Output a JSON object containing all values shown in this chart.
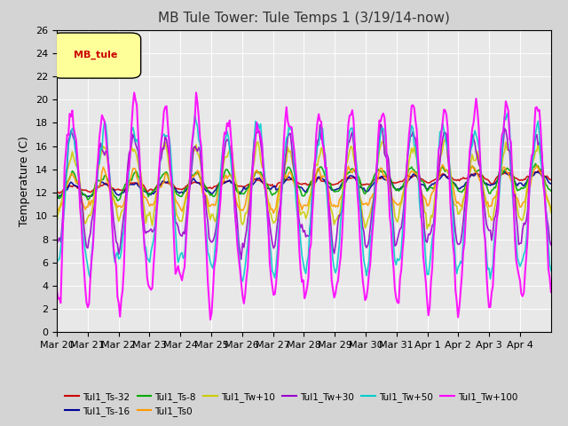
{
  "title": "MB Tule Tower: Tule Temps 1 (3/19/14-now)",
  "ylabel": "Temperature (C)",
  "xlabel": "",
  "ylim": [
    0,
    26
  ],
  "yticks": [
    0,
    2,
    4,
    6,
    8,
    10,
    12,
    14,
    16,
    18,
    20,
    22,
    24,
    26
  ],
  "x_labels": [
    "Mar 20",
    "Mar 21",
    "Mar 22",
    "Mar 23",
    "Mar 24",
    "Mar 25",
    "Mar 26",
    "Mar 27",
    "Mar 28",
    "Mar 29",
    "Mar 30",
    "Mar 31",
    "Apr 1",
    "Apr 2",
    "Apr 3",
    "Apr 4"
  ],
  "n_days": 16,
  "series": [
    {
      "label": "Tul1_Ts-32",
      "color": "#cc0000",
      "lw": 1.2
    },
    {
      "label": "Tul1_Ts-16",
      "color": "#000099",
      "lw": 1.2
    },
    {
      "label": "Tul1_Ts-8",
      "color": "#00aa00",
      "lw": 1.2
    },
    {
      "label": "Tul1_Ts0",
      "color": "#ff9900",
      "lw": 1.2
    },
    {
      "label": "Tul1_Tw+10",
      "color": "#cccc00",
      "lw": 1.2
    },
    {
      "label": "Tul1_Tw+30",
      "color": "#9900cc",
      "lw": 1.2
    },
    {
      "label": "Tul1_Tw+50",
      "color": "#00cccc",
      "lw": 1.2
    },
    {
      "label": "Tul1_Tw+100",
      "color": "#ff00ff",
      "lw": 1.5
    }
  ],
  "series_configs": [
    {
      "base": 12.3,
      "amp_day": 0.3,
      "amp_noise": 0.15,
      "trend": 1.2,
      "seed": 1
    },
    {
      "base": 12.2,
      "amp_day": 0.5,
      "amp_noise": 0.2,
      "trend": 1.0,
      "seed": 2
    },
    {
      "base": 12.5,
      "amp_day": 1.0,
      "amp_noise": 0.3,
      "trend": 0.8,
      "seed": 3
    },
    {
      "base": 12.0,
      "amp_day": 1.5,
      "amp_noise": 0.5,
      "trend": 0.5,
      "seed": 4
    },
    {
      "base": 12.5,
      "amp_day": 3.0,
      "amp_noise": 0.8,
      "trend": 0.3,
      "seed": 5
    },
    {
      "base": 12.0,
      "amp_day": 4.5,
      "amp_noise": 1.0,
      "trend": 0.2,
      "seed": 6
    },
    {
      "base": 11.5,
      "amp_day": 6.0,
      "amp_noise": 1.2,
      "trend": 0.1,
      "seed": 7
    },
    {
      "base": 11.0,
      "amp_day": 8.0,
      "amp_noise": 1.5,
      "trend": 0.0,
      "seed": 8
    }
  ],
  "legend_box_color": "#ffff99",
  "legend_box_label": "MB_tule",
  "legend_box_text_color": "#cc0000",
  "fig_bg": "#d4d4d4",
  "plot_bg": "#e8e8e8",
  "grid_color": "#ffffff",
  "title_fontsize": 11,
  "axis_fontsize": 9,
  "tick_fontsize": 8
}
